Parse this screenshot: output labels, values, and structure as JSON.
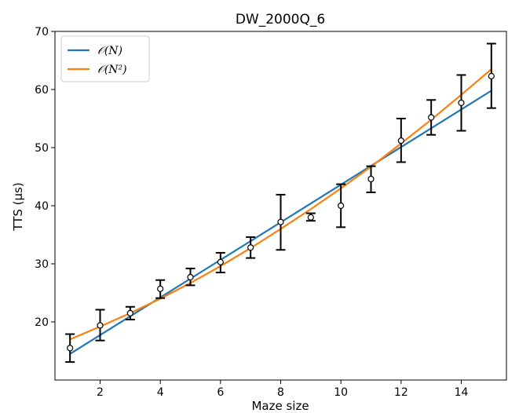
{
  "chart_data": {
    "type": "line",
    "title": "DW_2000Q_6",
    "xlabel": "Maze size",
    "ylabel": "TTS (µs)",
    "xlim": [
      0.5,
      15.5
    ],
    "ylim": [
      10,
      70
    ],
    "xticks": [
      2,
      4,
      6,
      8,
      10,
      12,
      14
    ],
    "yticks": [
      20,
      30,
      40,
      50,
      60,
      70
    ],
    "grid": false,
    "legend_position": "top-left",
    "points": {
      "x": [
        1,
        2,
        3,
        4,
        5,
        6,
        7,
        8,
        9,
        10,
        11,
        12,
        13,
        14,
        15
      ],
      "y": [
        15.5,
        19.4,
        21.5,
        25.7,
        27.7,
        30.3,
        32.8,
        37.2,
        38.0,
        40.0,
        44.6,
        51.2,
        55.2,
        57.7,
        62.3
      ],
      "yerr_low": [
        13.1,
        16.8,
        20.4,
        24.1,
        26.3,
        28.5,
        31.0,
        32.4,
        37.4,
        36.3,
        42.3,
        47.5,
        52.2,
        52.9,
        56.8
      ],
      "yerr_high": [
        17.9,
        22.1,
        22.6,
        27.2,
        29.2,
        31.9,
        34.6,
        41.9,
        38.7,
        43.7,
        46.8,
        55.0,
        58.2,
        62.5,
        67.9
      ]
    },
    "series": [
      {
        "name": "𝒪(N)",
        "color": "#1f77b4",
        "x": [
          1,
          15
        ],
        "y": [
          14.5,
          59.8
        ]
      },
      {
        "name": "𝒪(N²)",
        "color": "#ff7f0e",
        "x": [
          1,
          2,
          3,
          4,
          5,
          6,
          7,
          8,
          9,
          10,
          11,
          12,
          13,
          14,
          15
        ],
        "y": [
          17.0,
          19.2,
          21.5,
          24.0,
          26.7,
          29.6,
          32.7,
          36.0,
          39.4,
          43.0,
          46.7,
          50.7,
          54.8,
          59.1,
          63.5
        ]
      }
    ]
  }
}
